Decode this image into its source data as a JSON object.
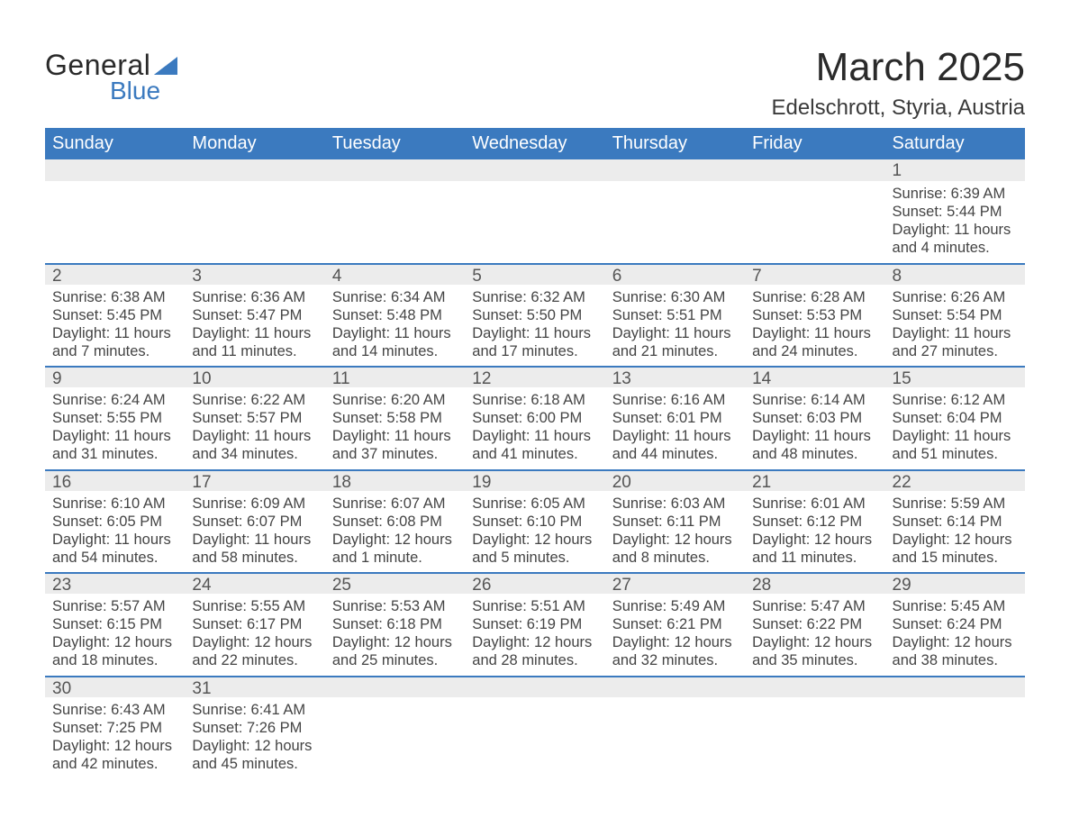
{
  "logo": {
    "text1": "General",
    "text2": "Blue",
    "triangle_color": "#3b7abf"
  },
  "title": "March 2025",
  "location": "Edelschrott, Styria, Austria",
  "colors": {
    "header_bg": "#3b7abf",
    "header_text": "#ffffff",
    "daynum_bg": "#ececec",
    "row_border": "#3b7abf",
    "body_text": "#444444",
    "page_bg": "#ffffff"
  },
  "typography": {
    "title_fontsize": 44,
    "location_fontsize": 24,
    "weekday_fontsize": 20,
    "daynum_fontsize": 19,
    "cell_fontsize": 16.5
  },
  "weekdays": [
    "Sunday",
    "Monday",
    "Tuesday",
    "Wednesday",
    "Thursday",
    "Friday",
    "Saturday"
  ],
  "weeks": [
    [
      {
        "num": "",
        "lines": []
      },
      {
        "num": "",
        "lines": []
      },
      {
        "num": "",
        "lines": []
      },
      {
        "num": "",
        "lines": []
      },
      {
        "num": "",
        "lines": []
      },
      {
        "num": "",
        "lines": []
      },
      {
        "num": "1",
        "lines": [
          "Sunrise: 6:39 AM",
          "Sunset: 5:44 PM",
          "Daylight: 11 hours and 4 minutes."
        ]
      }
    ],
    [
      {
        "num": "2",
        "lines": [
          "Sunrise: 6:38 AM",
          "Sunset: 5:45 PM",
          "Daylight: 11 hours and 7 minutes."
        ]
      },
      {
        "num": "3",
        "lines": [
          "Sunrise: 6:36 AM",
          "Sunset: 5:47 PM",
          "Daylight: 11 hours and 11 minutes."
        ]
      },
      {
        "num": "4",
        "lines": [
          "Sunrise: 6:34 AM",
          "Sunset: 5:48 PM",
          "Daylight: 11 hours and 14 minutes."
        ]
      },
      {
        "num": "5",
        "lines": [
          "Sunrise: 6:32 AM",
          "Sunset: 5:50 PM",
          "Daylight: 11 hours and 17 minutes."
        ]
      },
      {
        "num": "6",
        "lines": [
          "Sunrise: 6:30 AM",
          "Sunset: 5:51 PM",
          "Daylight: 11 hours and 21 minutes."
        ]
      },
      {
        "num": "7",
        "lines": [
          "Sunrise: 6:28 AM",
          "Sunset: 5:53 PM",
          "Daylight: 11 hours and 24 minutes."
        ]
      },
      {
        "num": "8",
        "lines": [
          "Sunrise: 6:26 AM",
          "Sunset: 5:54 PM",
          "Daylight: 11 hours and 27 minutes."
        ]
      }
    ],
    [
      {
        "num": "9",
        "lines": [
          "Sunrise: 6:24 AM",
          "Sunset: 5:55 PM",
          "Daylight: 11 hours and 31 minutes."
        ]
      },
      {
        "num": "10",
        "lines": [
          "Sunrise: 6:22 AM",
          "Sunset: 5:57 PM",
          "Daylight: 11 hours and 34 minutes."
        ]
      },
      {
        "num": "11",
        "lines": [
          "Sunrise: 6:20 AM",
          "Sunset: 5:58 PM",
          "Daylight: 11 hours and 37 minutes."
        ]
      },
      {
        "num": "12",
        "lines": [
          "Sunrise: 6:18 AM",
          "Sunset: 6:00 PM",
          "Daylight: 11 hours and 41 minutes."
        ]
      },
      {
        "num": "13",
        "lines": [
          "Sunrise: 6:16 AM",
          "Sunset: 6:01 PM",
          "Daylight: 11 hours and 44 minutes."
        ]
      },
      {
        "num": "14",
        "lines": [
          "Sunrise: 6:14 AM",
          "Sunset: 6:03 PM",
          "Daylight: 11 hours and 48 minutes."
        ]
      },
      {
        "num": "15",
        "lines": [
          "Sunrise: 6:12 AM",
          "Sunset: 6:04 PM",
          "Daylight: 11 hours and 51 minutes."
        ]
      }
    ],
    [
      {
        "num": "16",
        "lines": [
          "Sunrise: 6:10 AM",
          "Sunset: 6:05 PM",
          "Daylight: 11 hours and 54 minutes."
        ]
      },
      {
        "num": "17",
        "lines": [
          "Sunrise: 6:09 AM",
          "Sunset: 6:07 PM",
          "Daylight: 11 hours and 58 minutes."
        ]
      },
      {
        "num": "18",
        "lines": [
          "Sunrise: 6:07 AM",
          "Sunset: 6:08 PM",
          "Daylight: 12 hours and 1 minute."
        ]
      },
      {
        "num": "19",
        "lines": [
          "Sunrise: 6:05 AM",
          "Sunset: 6:10 PM",
          "Daylight: 12 hours and 5 minutes."
        ]
      },
      {
        "num": "20",
        "lines": [
          "Sunrise: 6:03 AM",
          "Sunset: 6:11 PM",
          "Daylight: 12 hours and 8 minutes."
        ]
      },
      {
        "num": "21",
        "lines": [
          "Sunrise: 6:01 AM",
          "Sunset: 6:12 PM",
          "Daylight: 12 hours and 11 minutes."
        ]
      },
      {
        "num": "22",
        "lines": [
          "Sunrise: 5:59 AM",
          "Sunset: 6:14 PM",
          "Daylight: 12 hours and 15 minutes."
        ]
      }
    ],
    [
      {
        "num": "23",
        "lines": [
          "Sunrise: 5:57 AM",
          "Sunset: 6:15 PM",
          "Daylight: 12 hours and 18 minutes."
        ]
      },
      {
        "num": "24",
        "lines": [
          "Sunrise: 5:55 AM",
          "Sunset: 6:17 PM",
          "Daylight: 12 hours and 22 minutes."
        ]
      },
      {
        "num": "25",
        "lines": [
          "Sunrise: 5:53 AM",
          "Sunset: 6:18 PM",
          "Daylight: 12 hours and 25 minutes."
        ]
      },
      {
        "num": "26",
        "lines": [
          "Sunrise: 5:51 AM",
          "Sunset: 6:19 PM",
          "Daylight: 12 hours and 28 minutes."
        ]
      },
      {
        "num": "27",
        "lines": [
          "Sunrise: 5:49 AM",
          "Sunset: 6:21 PM",
          "Daylight: 12 hours and 32 minutes."
        ]
      },
      {
        "num": "28",
        "lines": [
          "Sunrise: 5:47 AM",
          "Sunset: 6:22 PM",
          "Daylight: 12 hours and 35 minutes."
        ]
      },
      {
        "num": "29",
        "lines": [
          "Sunrise: 5:45 AM",
          "Sunset: 6:24 PM",
          "Daylight: 12 hours and 38 minutes."
        ]
      }
    ],
    [
      {
        "num": "30",
        "lines": [
          "Sunrise: 6:43 AM",
          "Sunset: 7:25 PM",
          "Daylight: 12 hours and 42 minutes."
        ]
      },
      {
        "num": "31",
        "lines": [
          "Sunrise: 6:41 AM",
          "Sunset: 7:26 PM",
          "Daylight: 12 hours and 45 minutes."
        ]
      },
      {
        "num": "",
        "lines": []
      },
      {
        "num": "",
        "lines": []
      },
      {
        "num": "",
        "lines": []
      },
      {
        "num": "",
        "lines": []
      },
      {
        "num": "",
        "lines": []
      }
    ]
  ]
}
